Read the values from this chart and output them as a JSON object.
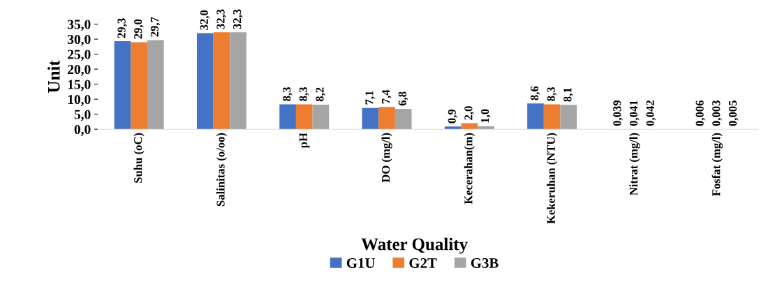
{
  "chart_data": {
    "type": "bar",
    "xlabel": "Water Quality",
    "ylabel": "Unit",
    "categories": [
      "Suhu (oC)",
      "Salinitas (o/oo)",
      "pH",
      "DO (mg/l)",
      "Kecerahan(m)",
      "Kekeruhan (NTU)",
      "Nitrat (mg/l)",
      "Fosfat (mg/l)"
    ],
    "series": [
      {
        "name": "G1U",
        "color": "#4472c4",
        "values": [
          29.3,
          32.0,
          8.3,
          7.1,
          0.9,
          8.6,
          0.039,
          0.006
        ],
        "value_labels": [
          "29,3",
          "32,0",
          "8,3",
          "7,1",
          "0,9",
          "8,6",
          "0,039",
          "0,006"
        ]
      },
      {
        "name": "G2T",
        "color": "#ed7d31",
        "values": [
          29.0,
          32.3,
          8.3,
          7.4,
          2.0,
          8.3,
          0.041,
          0.003
        ],
        "value_labels": [
          "29,0",
          "32,3",
          "8,3",
          "7,4",
          "2,0",
          "8,3",
          "0,041",
          "0,003"
        ]
      },
      {
        "name": "G3B",
        "color": "#a5a5a5",
        "values": [
          29.7,
          32.3,
          8.2,
          6.8,
          1.0,
          8.1,
          0.042,
          0.005
        ],
        "value_labels": [
          "29,7",
          "32,3",
          "8,2",
          "6,8",
          "1,0",
          "8,1",
          "0,042",
          "0,005"
        ]
      }
    ],
    "ylim": [
      0,
      35
    ],
    "yticks": [
      {
        "value": 0,
        "label": "0,0"
      },
      {
        "value": 5,
        "label": "5,0"
      },
      {
        "value": 10,
        "label": "10,0"
      },
      {
        "value": 15,
        "label": "15,0"
      },
      {
        "value": 20,
        "label": "20,0"
      },
      {
        "value": 25,
        "label": "25,0"
      },
      {
        "value": 30,
        "label": "30,0"
      },
      {
        "value": 35,
        "label": "35,0"
      }
    ],
    "grid": false,
    "legend": "bottom"
  }
}
